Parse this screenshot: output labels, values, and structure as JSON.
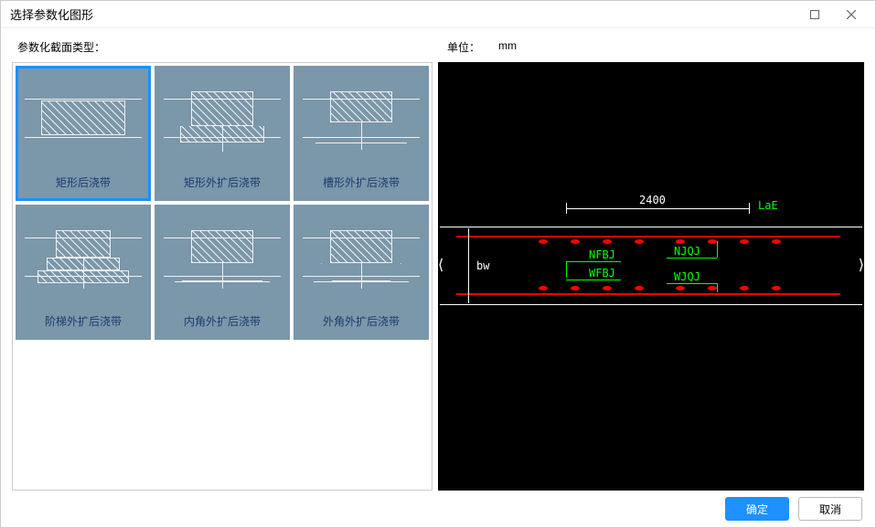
{
  "titlebar": {
    "title": "选择参数化图形"
  },
  "labels": {
    "section_type": "参数化截面类型：",
    "unit_label": "单位：",
    "unit_value": "mm"
  },
  "thumbnails": [
    {
      "label": "矩形后浇带",
      "selected": true
    },
    {
      "label": "矩形外扩后浇带",
      "selected": false
    },
    {
      "label": "槽形外扩后浇带",
      "selected": false
    },
    {
      "label": "阶梯外扩后浇带",
      "selected": false
    },
    {
      "label": "内角外扩后浇带",
      "selected": false
    },
    {
      "label": "外角外扩后浇带",
      "selected": false
    }
  ],
  "preview": {
    "background": "#000000",
    "line_color": "#ffffff",
    "rebar_color": "#ff0000",
    "text_color": "#00ff00",
    "dim_top": "2400",
    "label_lae": "LaE",
    "label_bw": "bw",
    "label_nfbj": "NFBJ",
    "label_njqj": "NJQJ",
    "label_wfbj": "WFBJ",
    "label_wjqj": "WJQJ"
  },
  "footer": {
    "ok": "确定",
    "cancel": "取消"
  }
}
